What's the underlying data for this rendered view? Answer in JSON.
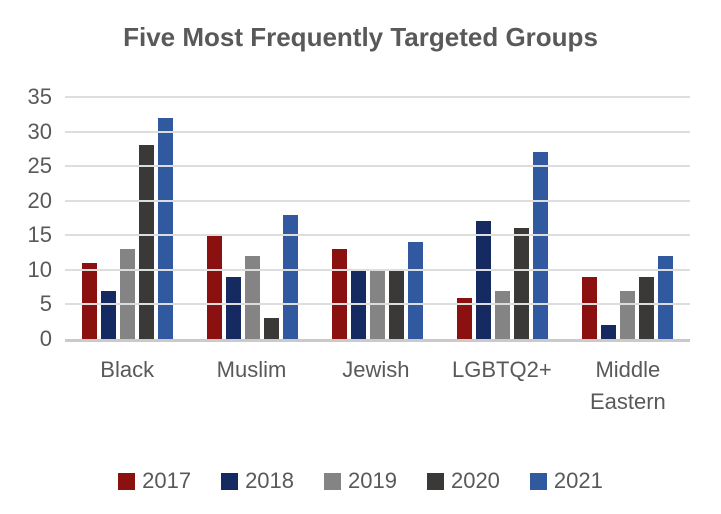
{
  "title": "Five Most Frequently Targeted Groups",
  "chart_data": {
    "type": "bar",
    "title": "Five Most Frequently Targeted Groups",
    "categories": [
      "Black",
      "Muslim",
      "Jewish",
      "LGBTQ2+",
      "Middle Eastern"
    ],
    "series": [
      {
        "name": "2017",
        "color": "#8B1111",
        "values": [
          11,
          15,
          13,
          6,
          9
        ]
      },
      {
        "name": "2018",
        "color": "#142A60",
        "values": [
          7,
          9,
          10,
          17,
          2
        ]
      },
      {
        "name": "2019",
        "color": "#848484",
        "values": [
          13,
          12,
          10,
          7,
          7
        ]
      },
      {
        "name": "2020",
        "color": "#3B3838",
        "values": [
          28,
          3,
          10,
          16,
          9
        ]
      },
      {
        "name": "2021",
        "color": "#3159A0",
        "values": [
          32,
          18,
          14,
          27,
          12
        ]
      }
    ],
    "xlabel": "",
    "ylabel": "",
    "ylim": [
      0,
      35
    ],
    "yticks": [
      0,
      5,
      10,
      15,
      20,
      25,
      30,
      35
    ],
    "grid": true,
    "legend_position": "bottom"
  },
  "colors": {
    "title_text": "#595959",
    "axis_text": "#595959",
    "gridline": "#DDDDDD",
    "axis_line": "#CBC9C9",
    "background": "#FFFFFF"
  }
}
